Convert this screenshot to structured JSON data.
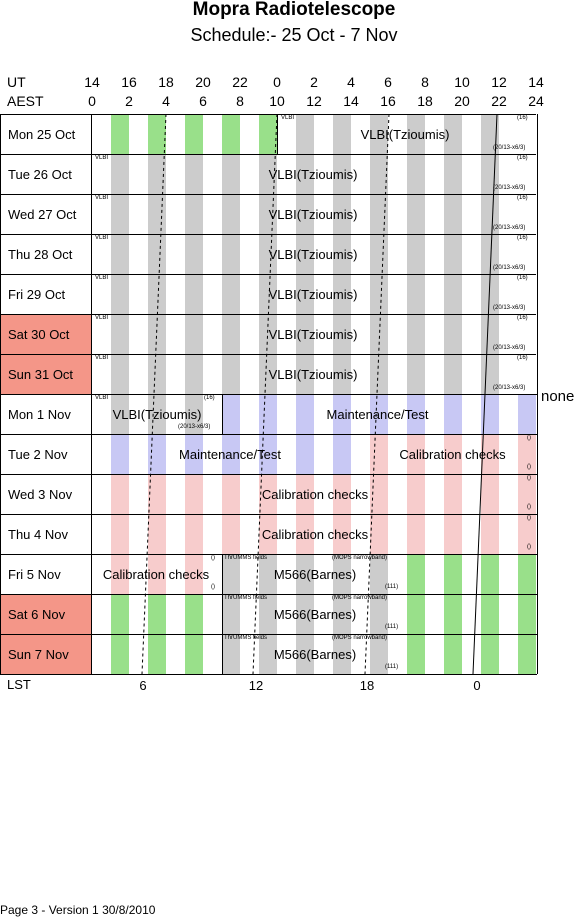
{
  "header": {
    "title": "Mopra Radiotelescope",
    "subtitle": "Schedule:- 25 Oct - 7  Nov"
  },
  "axes": {
    "ut_label": "UT",
    "aest_label": "AEST",
    "ut_ticks": [
      "14",
      "16",
      "18",
      "20",
      "22",
      "0",
      "2",
      "4",
      "6",
      "8",
      "10",
      "12",
      "14"
    ],
    "aest_ticks": [
      "0",
      "2",
      "4",
      "6",
      "8",
      "10",
      "12",
      "14",
      "16",
      "18",
      "20",
      "22",
      "24"
    ],
    "lst_label": "LST",
    "lst_ticks": [
      "6",
      "12",
      "18",
      "0"
    ]
  },
  "days": [
    {
      "label": "Mon   25 Oct",
      "weekend": false
    },
    {
      "label": "Tue   26 Oct",
      "weekend": false
    },
    {
      "label": "Wed   27 Oct",
      "weekend": false
    },
    {
      "label": "Thu   28 Oct",
      "weekend": false
    },
    {
      "label": "Fri    29 Oct",
      "weekend": false
    },
    {
      "label": "Sat    30 Oct",
      "weekend": true
    },
    {
      "label": "Sun   31 Oct",
      "weekend": true
    },
    {
      "label": "Mon   1  Nov",
      "weekend": false
    },
    {
      "label": "Tue   2  Nov",
      "weekend": false
    },
    {
      "label": "Wed   3  Nov",
      "weekend": false
    },
    {
      "label": "Thu   4  Nov",
      "weekend": false
    },
    {
      "label": "Fri    5  Nov",
      "weekend": false
    },
    {
      "label": "Sat    6  Nov",
      "weekend": true
    },
    {
      "label": "Sun   7  Nov",
      "weekend": true
    }
  ],
  "blocks": {
    "vlbi": "VLBI(Tzioumis)",
    "vlbi_tiny": "VLBI",
    "maint": "Maintenance/Test",
    "calib": "Calibration checks",
    "m566": "M566(Barnes)",
    "thrumms": "ThrUMMS fields",
    "mops": "(MOPS narrowband)",
    "n16": "(16)",
    "code": "(20/13-x6/3)",
    "n111": "(111)",
    "empty": "()"
  },
  "side_note": "none",
  "footer": "Page 3 - Version 1  30/8/2010",
  "colors": {
    "weekend": "#f49688",
    "grey": "#cccccc",
    "green": "#99e08a",
    "blue": "#c8c8f4",
    "pink": "#f7cccc"
  }
}
